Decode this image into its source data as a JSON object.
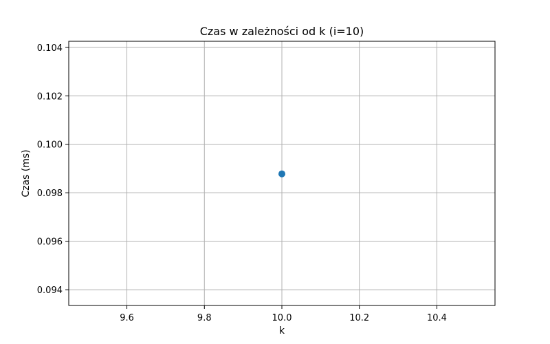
{
  "chart_data": {
    "type": "scatter",
    "title": "Czas w zależności od k (i=10)",
    "xlabel": "k",
    "ylabel": "Czas (ms)",
    "xlim": [
      9.45,
      10.55
    ],
    "ylim": [
      0.09335,
      0.10425
    ],
    "x_ticks": [
      9.6,
      9.8,
      10.0,
      10.2,
      10.4
    ],
    "x_tick_labels": [
      "9.6",
      "9.8",
      "10.0",
      "10.2",
      "10.4"
    ],
    "y_ticks": [
      0.094,
      0.096,
      0.098,
      0.1,
      0.102,
      0.104
    ],
    "y_tick_labels": [
      "0.094",
      "0.096",
      "0.098",
      "0.100",
      "0.102",
      "0.104"
    ],
    "grid": true,
    "series": [
      {
        "x": [
          10.0
        ],
        "y": [
          0.09878
        ],
        "color": "#1f77b4",
        "marker": "circle"
      }
    ]
  }
}
